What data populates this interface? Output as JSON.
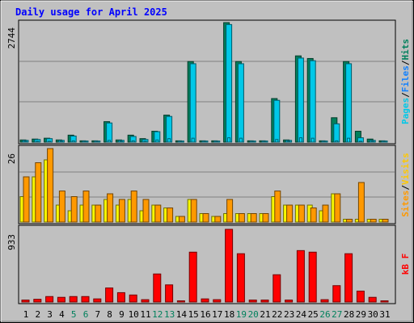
{
  "title": "Daily usage for April 2025",
  "chart_data": [
    {
      "type": "bar",
      "panel": "hits-files-pages",
      "ymax_label": "2744",
      "ylim": [
        0,
        2744
      ],
      "legend": [
        "Pages",
        "/",
        "Files",
        "/",
        "Hits"
      ],
      "series": [
        {
          "name": "Hits",
          "color": "#00805c",
          "values": [
            50,
            70,
            90,
            50,
            160,
            30,
            30,
            470,
            50,
            160,
            80,
            250,
            620,
            30,
            1850,
            30,
            30,
            2744,
            1850,
            30,
            30,
            1000,
            50,
            1980,
            1920,
            30,
            560,
            1850,
            250,
            70,
            30
          ]
        },
        {
          "name": "Files",
          "color": "#00c8e8",
          "values": [
            40,
            60,
            80,
            40,
            140,
            25,
            25,
            440,
            40,
            130,
            60,
            240,
            590,
            25,
            1800,
            25,
            25,
            2700,
            1800,
            25,
            25,
            960,
            40,
            1930,
            1870,
            25,
            420,
            1800,
            100,
            40,
            25
          ]
        },
        {
          "name": "Pages",
          "color": "#00d8f8",
          "values": [
            10,
            15,
            20,
            10,
            30,
            10,
            10,
            40,
            10,
            30,
            20,
            50,
            80,
            10,
            90,
            10,
            10,
            100,
            90,
            10,
            10,
            60,
            10,
            100,
            90,
            10,
            30,
            90,
            20,
            10,
            10
          ]
        }
      ]
    },
    {
      "type": "bar",
      "panel": "visits-sites",
      "ymax_label": "26",
      "ylim": [
        0,
        26
      ],
      "legend": [
        "Sites",
        "/",
        "Visits"
      ],
      "series": [
        {
          "name": "Visits",
          "color": "#f8f800",
          "values": [
            9,
            16,
            22,
            6,
            4,
            6,
            6,
            8,
            6,
            8,
            4,
            6,
            5,
            2,
            8,
            3,
            2,
            3,
            3,
            3,
            3,
            9,
            6,
            6,
            6,
            4,
            10,
            1,
            1,
            1,
            1
          ]
        },
        {
          "name": "Sites",
          "color": "#ff9900",
          "values": [
            16,
            21,
            26,
            11,
            9,
            11,
            6,
            10,
            8,
            11,
            8,
            6,
            5,
            2,
            8,
            3,
            2,
            8,
            3,
            3,
            3,
            11,
            6,
            6,
            5,
            6,
            10,
            1,
            14,
            1,
            1
          ]
        }
      ]
    },
    {
      "type": "bar",
      "panel": "kbytes",
      "ymax_label": "933",
      "ylim": [
        0,
        933
      ],
      "legend": [
        "kB F"
      ],
      "series": [
        {
          "name": "kB F",
          "color": "#ff0000",
          "values": [
            25,
            35,
            70,
            60,
            70,
            70,
            40,
            180,
            120,
            90,
            30,
            360,
            220,
            15,
            640,
            40,
            30,
            933,
            620,
            25,
            25,
            350,
            25,
            660,
            640,
            30,
            210,
            620,
            140,
            60,
            15
          ]
        }
      ]
    },
    {
      "type": "bar",
      "x_axis": {
        "ticks": [
          "1",
          "2",
          "3",
          "4",
          "5",
          "6",
          "7",
          "8",
          "9",
          "10",
          "11",
          "12",
          "13",
          "14",
          "15",
          "16",
          "17",
          "18",
          "19",
          "20",
          "21",
          "22",
          "23",
          "24",
          "25",
          "26",
          "27",
          "28",
          "29",
          "30",
          "31"
        ],
        "weekend_ticks": [
          "5",
          "6",
          "12",
          "13",
          "19",
          "20",
          "26",
          "27"
        ]
      }
    }
  ],
  "colors": {
    "background": "#c0c0c0",
    "title": "#0000ff",
    "weekend": "#00805c",
    "hits": "#00805c",
    "files": "#1080ff",
    "pages": "#00c8e8",
    "visits": "#ffc800",
    "sites": "#ff9900",
    "kbytes": "#ff0000"
  }
}
